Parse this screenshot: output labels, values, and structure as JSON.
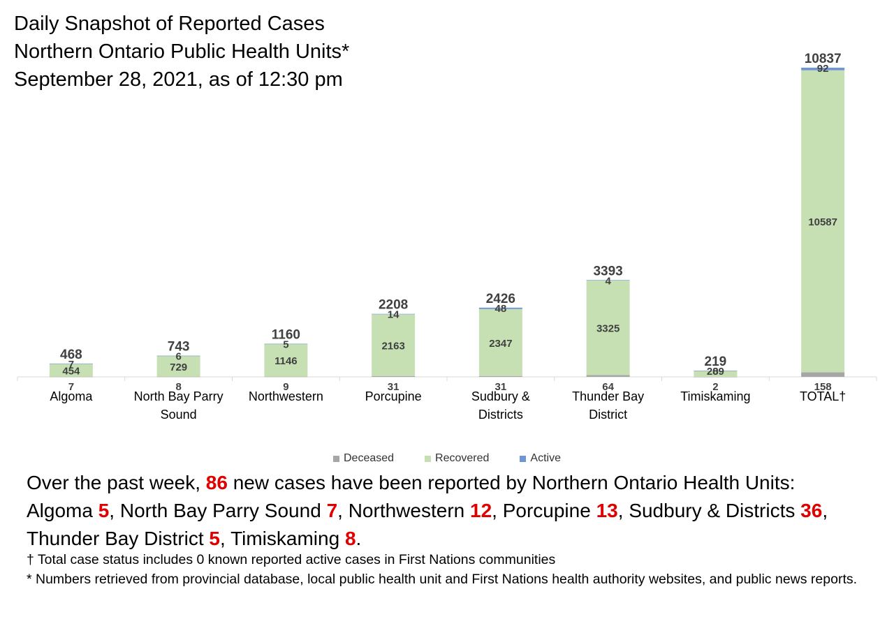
{
  "title": {
    "line1": "Daily Snapshot of Reported Cases",
    "line2": "Northern Ontario Public Health Units*",
    "line3": "September 28, 2021, as of 12:30 pm"
  },
  "colors": {
    "deceased": "#a6a6a6",
    "recovered": "#c6e0b4",
    "active": "#6f96d4",
    "highlight": "#e00000"
  },
  "chart_data": {
    "type": "bar",
    "stacked": true,
    "categories": [
      [
        "Algoma"
      ],
      [
        "North Bay Parry",
        "Sound"
      ],
      [
        "Northwestern"
      ],
      [
        "Porcupine"
      ],
      [
        "Sudbury &",
        "Districts"
      ],
      [
        "Thunder Bay",
        "District"
      ],
      [
        "Timiskaming"
      ],
      [
        "TOTAL†"
      ]
    ],
    "series": [
      {
        "name": "Deceased",
        "values": [
          7,
          8,
          9,
          31,
          31,
          64,
          2,
          158
        ]
      },
      {
        "name": "Recovered",
        "values": [
          454,
          729,
          1146,
          2163,
          2347,
          3325,
          209,
          10587
        ]
      },
      {
        "name": "Active",
        "values": [
          7,
          6,
          5,
          14,
          48,
          4,
          8,
          92
        ]
      }
    ],
    "totals": [
      468,
      743,
      1160,
      2208,
      2426,
      3393,
      219,
      10837
    ],
    "ylim": [
      0,
      10837
    ],
    "grid": false,
    "legend_position": "bottom"
  },
  "summary": {
    "line1_pre": "Over the past week,",
    "total_new": "86",
    "line1_post": "new cases have been reported by Northern Ontario Health Units:",
    "items": [
      {
        "name": "Algoma",
        "value": "5"
      },
      {
        "name": "North Bay Parry Sound",
        "value": "7"
      },
      {
        "name": "Northwestern",
        "value": "12"
      },
      {
        "name": "Porcupine",
        "value": "13"
      },
      {
        "name": "Sudbury & Districts",
        "value": "36"
      },
      {
        "name": "Thunder Bay District",
        "value": "5"
      },
      {
        "name": "Timiskaming",
        "value": "8"
      }
    ]
  },
  "footnotes": [
    "† Total case status includes 0 known reported active cases in First Nations communities",
    "* Numbers retrieved from provincial database, local public health unit and First Nations health authority websites, and public news reports."
  ]
}
